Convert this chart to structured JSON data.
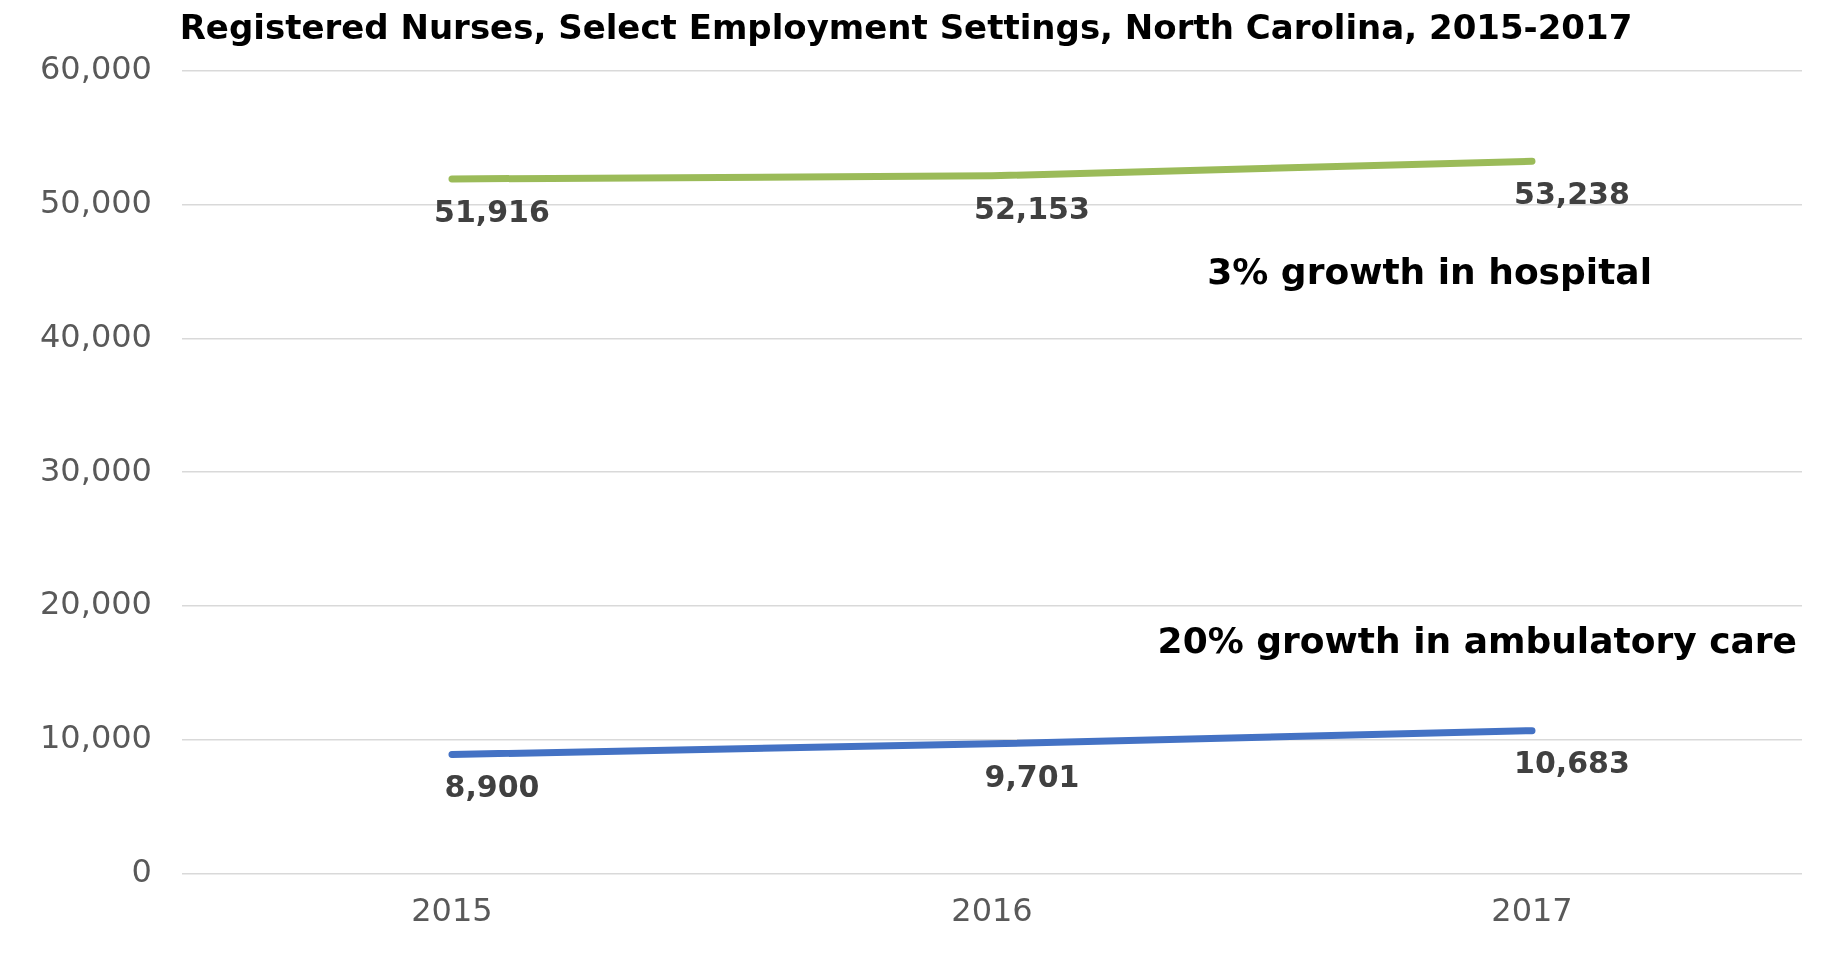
{
  "chart_data": {
    "type": "line",
    "title": "Registered Nurses, Select Employment Settings, North Carolina, 2015-2017",
    "categories": [
      "2015",
      "2016",
      "2017"
    ],
    "series": [
      {
        "color": "#9bbb59",
        "values": [
          51916,
          52153,
          53238
        ],
        "value_labels": [
          "51,916",
          "52,153",
          "53,238"
        ]
      },
      {
        "color": "#4472c4",
        "values": [
          8900,
          9701,
          10683
        ],
        "value_labels": [
          "8,900",
          "9,701",
          "10,683"
        ]
      }
    ],
    "ylim": [
      0,
      60000
    ],
    "yticks": [
      {
        "value": 0,
        "label": "0"
      },
      {
        "value": 10000,
        "label": "10,000"
      },
      {
        "value": 20000,
        "label": "20,000"
      },
      {
        "value": 30000,
        "label": "30,000"
      },
      {
        "value": 40000,
        "label": "40,000"
      },
      {
        "value": 50000,
        "label": "50,000"
      },
      {
        "value": 60000,
        "label": "60,000"
      }
    ],
    "grid": "y",
    "legend": false,
    "marker": "none",
    "annotations": [
      "3% growth in hospital",
      "20% growth in ambulatory care"
    ]
  }
}
